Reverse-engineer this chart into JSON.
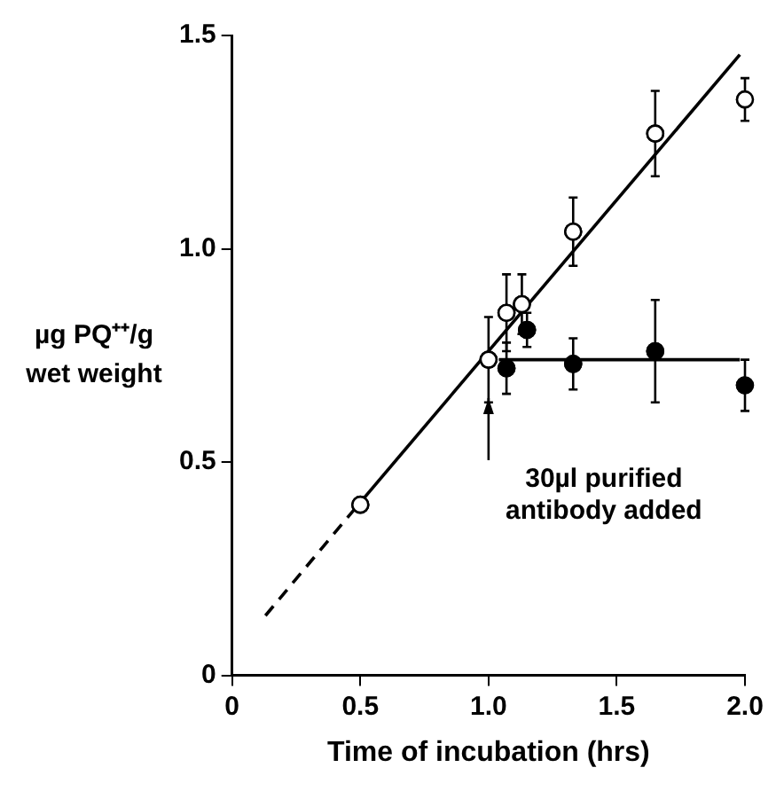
{
  "chart_data": {
    "type": "scatter",
    "xlabel": "Time of incubation (hrs)",
    "ylabel": "µg PQ⁺⁺/g wet weight",
    "xlim": [
      0,
      2
    ],
    "xticks": [
      0,
      0.5,
      {
        "value": 1,
        "label": "1.0"
      },
      1.5,
      {
        "value": 2,
        "label": "2.0"
      }
    ],
    "ylim": [
      0,
      1.5
    ],
    "yticks": [
      0,
      0.5,
      {
        "value": 1,
        "label": "1.0"
      },
      1.5
    ],
    "grid": false,
    "legend": false,
    "annotations": [
      {
        "text": "30µl purified antibody added",
        "x": 1.0,
        "y": 0.65
      }
    ],
    "series": [
      {
        "type": "scatter",
        "marker": "circle",
        "color": "#ffffff",
        "x": [
          0.5,
          1.0,
          1.07,
          1.13,
          1.33,
          1.65,
          2.0
        ],
        "values": [
          0.4,
          0.74,
          0.85,
          0.87,
          1.04,
          1.27,
          1.35
        ],
        "errors": [
          null,
          0.1,
          0.09,
          0.07,
          0.08,
          0.1,
          0.05
        ]
      },
      {
        "type": "scatter",
        "marker": "circle",
        "color": "#000000",
        "x": [
          1.07,
          1.15,
          1.33,
          1.65,
          2.0
        ],
        "values": [
          0.72,
          0.81,
          0.73,
          0.76,
          0.68
        ],
        "errors": [
          0.06,
          0.04,
          0.06,
          0.12,
          0.06
        ]
      },
      {
        "type": "line",
        "marker": "none",
        "line_style": "solid",
        "color": "#000000",
        "x": [
          0.45,
          1.98
        ],
        "values": [
          0.37,
          1.455
        ]
      },
      {
        "type": "line",
        "marker": "none",
        "line_style": "dashed",
        "color": "#000000",
        "x": [
          0.13,
          0.45
        ],
        "values": [
          0.14,
          0.37
        ]
      },
      {
        "type": "line",
        "marker": "none",
        "line_style": "solid",
        "color": "#000000",
        "x": [
          1.04,
          1.98
        ],
        "values": [
          0.74,
          0.74
        ]
      }
    ]
  }
}
